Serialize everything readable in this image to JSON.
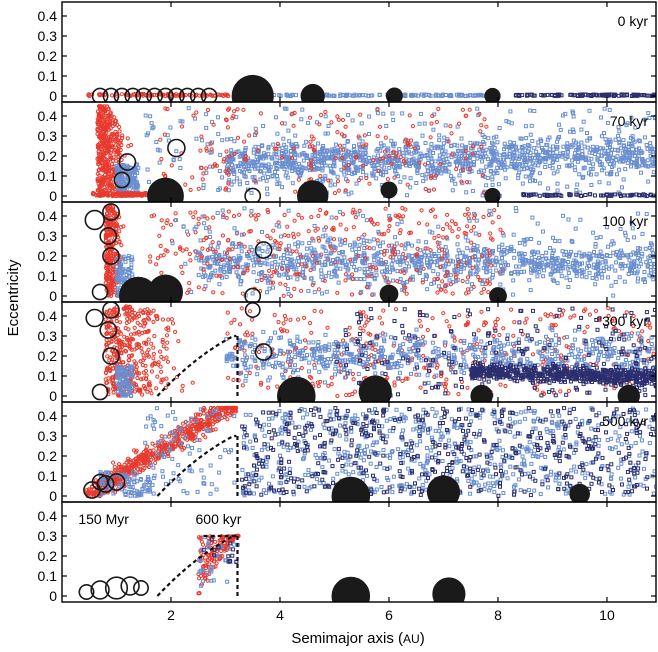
{
  "chart_data": {
    "type": "scatter",
    "xlabel": "Semimajor axis",
    "xlabel_unit": "AU",
    "ylabel": "Eccentricity",
    "xlim": [
      0.0,
      10.9
    ],
    "ylim": [
      0.0,
      0.45
    ],
    "x_ticks": [
      2,
      4,
      6,
      8,
      10
    ],
    "y_ticks": [
      0,
      0.1,
      0.2,
      0.3,
      0.4
    ],
    "y_tick_labels": [
      "0",
      "0.1",
      "0.2",
      "0.3",
      "0.4"
    ],
    "colors": {
      "inner_solids": "#e83a2e",
      "outer_solids": "#6a8fd0",
      "far_solids": "#2b2e6e",
      "embryos": "#1a1a1a"
    },
    "panels": [
      {
        "label": "0 kyr",
        "planets": [
          {
            "a": 3.5,
            "e": 0.0,
            "size": 1.9,
            "filled": true
          },
          {
            "a": 4.6,
            "e": 0.0,
            "size": 0.9,
            "filled": true
          },
          {
            "a": 6.1,
            "e": 0.0,
            "size": 0.5,
            "filled": true
          },
          {
            "a": 7.9,
            "e": 0.0,
            "size": 0.45,
            "filled": true
          },
          {
            "a": 0.7,
            "e": 0.0,
            "size": 0.4,
            "filled": false
          },
          {
            "a": 0.9,
            "e": 0.0,
            "size": 0.4,
            "filled": false
          },
          {
            "a": 1.1,
            "e": 0.0,
            "size": 0.4,
            "filled": false
          },
          {
            "a": 1.3,
            "e": 0.0,
            "size": 0.4,
            "filled": false
          },
          {
            "a": 1.5,
            "e": 0.0,
            "size": 0.4,
            "filled": false
          },
          {
            "a": 1.7,
            "e": 0.0,
            "size": 0.4,
            "filled": false
          },
          {
            "a": 1.9,
            "e": 0.0,
            "size": 0.4,
            "filled": false
          },
          {
            "a": 2.1,
            "e": 0.0,
            "size": 0.4,
            "filled": false
          },
          {
            "a": 2.3,
            "e": 0.0,
            "size": 0.4,
            "filled": false
          },
          {
            "a": 2.5,
            "e": 0.0,
            "size": 0.4,
            "filled": false
          },
          {
            "a": 2.7,
            "e": 0.0,
            "size": 0.4,
            "filled": false
          }
        ]
      },
      {
        "label": "70 kyr",
        "planets": [
          {
            "a": 1.9,
            "e": 0.0,
            "size": 1.6,
            "filled": true
          },
          {
            "a": 4.6,
            "e": 0.0,
            "size": 1.3,
            "filled": true
          },
          {
            "a": 6.0,
            "e": 0.03,
            "size": 0.5,
            "filled": true
          },
          {
            "a": 7.9,
            "e": 0.0,
            "size": 0.45,
            "filled": true
          },
          {
            "a": 1.2,
            "e": 0.17,
            "size": 0.45,
            "filled": false
          },
          {
            "a": 2.1,
            "e": 0.24,
            "size": 0.5,
            "filled": false
          },
          {
            "a": 1.1,
            "e": 0.08,
            "size": 0.4,
            "filled": false
          },
          {
            "a": 3.5,
            "e": 0.0,
            "size": 0.4,
            "filled": false
          }
        ]
      },
      {
        "label": "100 kyr",
        "planets": [
          {
            "a": 1.4,
            "e": 0.0,
            "size": 1.7,
            "filled": true
          },
          {
            "a": 1.9,
            "e": 0.02,
            "size": 1.5,
            "filled": true
          },
          {
            "a": 6.0,
            "e": 0.01,
            "size": 0.6,
            "filled": true
          },
          {
            "a": 8.0,
            "e": 0.0,
            "size": 0.55,
            "filled": true
          },
          {
            "a": 0.6,
            "e": 0.38,
            "size": 0.6,
            "filled": false
          },
          {
            "a": 0.9,
            "e": 0.42,
            "size": 0.45,
            "filled": false
          },
          {
            "a": 0.85,
            "e": 0.3,
            "size": 0.45,
            "filled": false
          },
          {
            "a": 0.9,
            "e": 0.2,
            "size": 0.45,
            "filled": false
          },
          {
            "a": 3.7,
            "e": 0.23,
            "size": 0.45,
            "filled": false
          },
          {
            "a": 0.7,
            "e": 0.02,
            "size": 0.4,
            "filled": false
          },
          {
            "a": 3.5,
            "e": 0.0,
            "size": 0.4,
            "filled": false
          }
        ]
      },
      {
        "label": "300 kyr",
        "planets": [
          {
            "a": 4.3,
            "e": 0.0,
            "size": 1.7,
            "filled": true
          },
          {
            "a": 5.75,
            "e": 0.02,
            "size": 1.4,
            "filled": true
          },
          {
            "a": 7.7,
            "e": 0.0,
            "size": 0.8,
            "filled": true
          },
          {
            "a": 10.4,
            "e": 0.0,
            "size": 0.8,
            "filled": true
          },
          {
            "a": 0.6,
            "e": 0.39,
            "size": 0.5,
            "filled": false
          },
          {
            "a": 0.9,
            "e": 0.43,
            "size": 0.45,
            "filled": false
          },
          {
            "a": 0.85,
            "e": 0.33,
            "size": 0.45,
            "filled": false
          },
          {
            "a": 0.9,
            "e": 0.2,
            "size": 0.45,
            "filled": false
          },
          {
            "a": 3.7,
            "e": 0.22,
            "size": 0.45,
            "filled": false
          },
          {
            "a": 0.7,
            "e": 0.02,
            "size": 0.4,
            "filled": false
          },
          {
            "a": 3.5,
            "e": 0.43,
            "size": 0.35,
            "filled": false
          }
        ]
      },
      {
        "label": "500 kyr",
        "planets": [
          {
            "a": 5.3,
            "e": 0.0,
            "size": 1.7,
            "filled": true
          },
          {
            "a": 7.0,
            "e": 0.02,
            "size": 1.4,
            "filled": true
          },
          {
            "a": 9.5,
            "e": 0.01,
            "size": 0.7,
            "filled": true
          },
          {
            "a": 0.55,
            "e": 0.03,
            "size": 0.45,
            "filled": false
          },
          {
            "a": 0.8,
            "e": 0.06,
            "size": 0.45,
            "filled": false
          },
          {
            "a": 1.0,
            "e": 0.07,
            "size": 0.45,
            "filled": false
          },
          {
            "a": 0.7,
            "e": 0.07,
            "size": 0.4,
            "filled": false
          }
        ]
      },
      {
        "label": "",
        "annotations": [
          "150 Myr",
          "600 kyr"
        ],
        "planets": [
          {
            "a": 5.3,
            "e": 0.0,
            "size": 1.7,
            "filled": true
          },
          {
            "a": 7.1,
            "e": 0.01,
            "size": 1.4,
            "filled": true
          },
          {
            "a": 0.45,
            "e": 0.02,
            "size": 0.35,
            "filled": false
          },
          {
            "a": 0.7,
            "e": 0.03,
            "size": 0.55,
            "filled": false
          },
          {
            "a": 1.0,
            "e": 0.04,
            "size": 0.75,
            "filled": false
          },
          {
            "a": 1.25,
            "e": 0.05,
            "size": 0.55,
            "filled": false
          },
          {
            "a": 1.45,
            "e": 0.04,
            "size": 0.35,
            "filled": false
          }
        ]
      }
    ]
  }
}
